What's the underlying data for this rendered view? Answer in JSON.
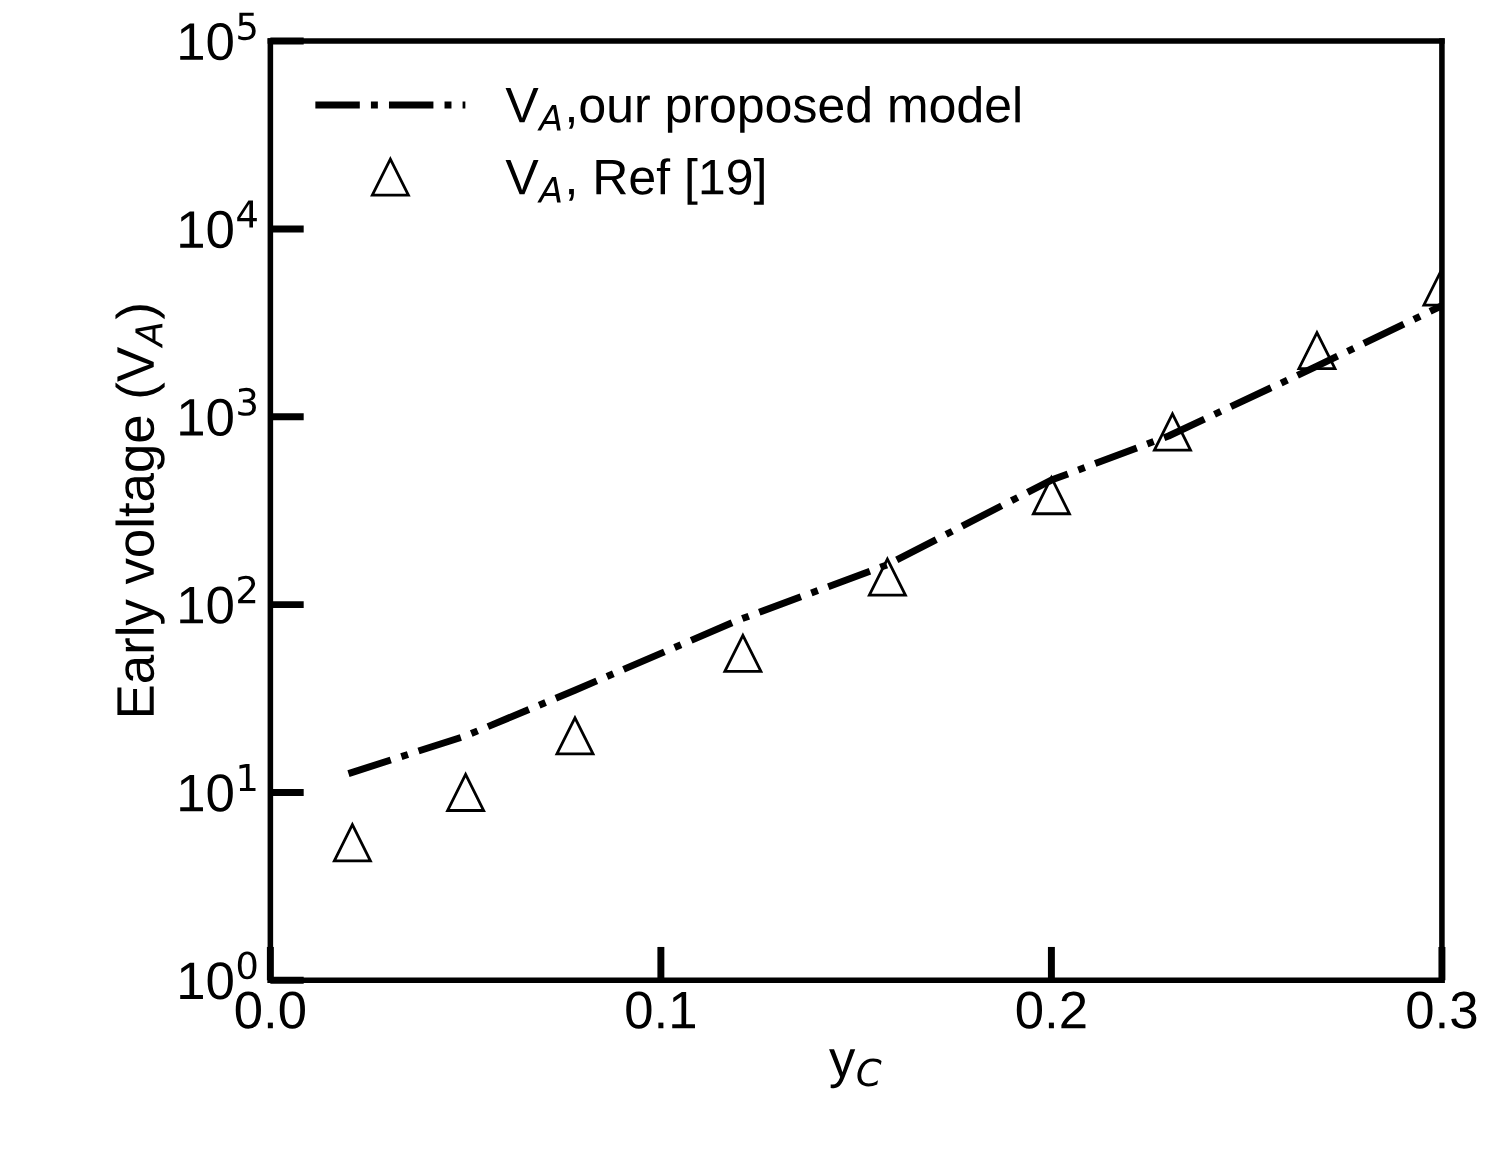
{
  "chart_data": {
    "type": "line",
    "xlabel": "y$_{C}$",
    "ylabel": "Early voltage (V$_{A}$)",
    "series": [
      {
        "name": "V$_{A}$,our proposed model",
        "color": "#000000",
        "line_style": "dashdot",
        "marker": "none",
        "x": [
          0.02,
          0.05,
          0.078,
          0.12,
          0.158,
          0.2,
          0.23,
          0.268,
          0.3
        ],
        "values": [
          12.6,
          20,
          35,
          83,
          163,
          460,
          790,
          1860,
          3900
        ]
      },
      {
        "name": "V$_{A}$, Ref [19]",
        "type": "scatter",
        "color": "#000000",
        "marker": "triangle",
        "x": [
          0.021,
          0.05,
          0.078,
          0.121,
          0.158,
          0.2,
          0.231,
          0.268,
          0.3
        ],
        "values": [
          5.4,
          10,
          20,
          55,
          140,
          380,
          830,
          2250,
          4900
        ]
      }
    ],
    "log": "y",
    "xlim": [
      0.0,
      0.3
    ],
    "xticks": [
      {
        "value": 0.0,
        "label": "0.0"
      },
      0.1,
      0.2,
      0.3
    ],
    "ylim": [
      1,
      100000
    ],
    "yticks": [
      {
        "value": 1,
        "label": "10$^{0}$"
      },
      {
        "value": 10,
        "label": "10$^{1}$"
      },
      {
        "value": 100,
        "label": "10$^{2}$"
      },
      {
        "value": 1000,
        "label": "10$^{3}$"
      },
      {
        "value": 10000,
        "label": "10$^{4}$"
      },
      {
        "value": 100000,
        "label": "10$^{5}$"
      }
    ],
    "grid": false,
    "legend": "top left"
  }
}
